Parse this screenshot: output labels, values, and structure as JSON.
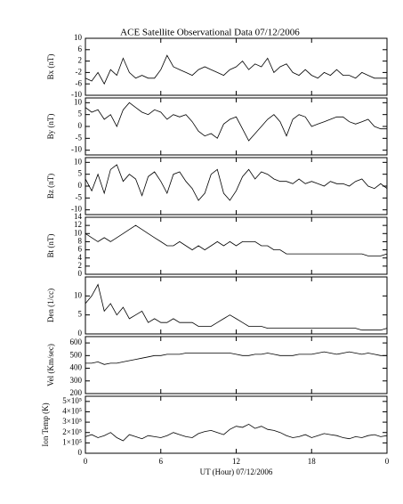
{
  "title": "ACE Satellite Observational Data   07/12/2006",
  "chart_data": [
    {
      "type": "line",
      "ylabel": "Bx (nT)",
      "ylim": [
        -10,
        10
      ],
      "yticks": [
        -10,
        -6,
        -2,
        2,
        6,
        10
      ],
      "x": [
        0,
        0.5,
        1,
        1.5,
        2,
        2.5,
        3,
        3.5,
        4,
        4.5,
        5,
        5.5,
        6,
        6.5,
        7,
        7.5,
        8,
        8.5,
        9,
        9.5,
        10,
        10.5,
        11,
        11.5,
        12,
        12.5,
        13,
        13.5,
        14,
        14.5,
        15,
        15.5,
        16,
        16.5,
        17,
        17.5,
        18,
        18.5,
        19,
        19.5,
        20,
        20.5,
        21,
        21.5,
        22,
        22.5,
        23,
        23.5,
        24
      ],
      "values": [
        -4,
        -5,
        -2,
        -6,
        -1,
        -3,
        3,
        -2,
        -4,
        -3,
        -4,
        -4,
        -1,
        4,
        0,
        -1,
        -2,
        -3,
        -1,
        0,
        -1,
        -2,
        -3,
        -1,
        0,
        2,
        -1,
        1,
        0,
        3,
        -2,
        0,
        1,
        -2,
        -3,
        -1,
        -3,
        -4,
        -2,
        -3,
        -1,
        -3,
        -3,
        -4,
        -2,
        -3,
        -4,
        -4,
        -4
      ],
      "color": "#000000"
    },
    {
      "type": "line",
      "ylabel": "By (nT)",
      "ylim": [
        -12,
        12
      ],
      "yticks": [
        -10,
        -5,
        0,
        5,
        10
      ],
      "x": [
        0,
        0.5,
        1,
        1.5,
        2,
        2.5,
        3,
        3.5,
        4,
        4.5,
        5,
        5.5,
        6,
        6.5,
        7,
        7.5,
        8,
        8.5,
        9,
        9.5,
        10,
        10.5,
        11,
        11.5,
        12,
        12.5,
        13,
        13.5,
        14,
        14.5,
        15,
        15.5,
        16,
        16.5,
        17,
        17.5,
        18,
        18.5,
        19,
        19.5,
        20,
        20.5,
        21,
        21.5,
        22,
        22.5,
        23,
        23.5,
        24
      ],
      "values": [
        8,
        6,
        7,
        3,
        5,
        0,
        7,
        10,
        8,
        6,
        5,
        7,
        6,
        3,
        5,
        4,
        5,
        2,
        -2,
        -4,
        -3,
        -5,
        1,
        3,
        4,
        -1,
        -6,
        -3,
        0,
        3,
        5,
        2,
        -4,
        3,
        5,
        4,
        0,
        1,
        2,
        3,
        4,
        4,
        2,
        1,
        2,
        3,
        0,
        -1,
        -1
      ],
      "color": "#000000"
    },
    {
      "type": "line",
      "ylabel": "Bz (nT)",
      "ylim": [
        -12,
        12
      ],
      "yticks": [
        -10,
        -5,
        0,
        5,
        10
      ],
      "x": [
        0,
        0.5,
        1,
        1.5,
        2,
        2.5,
        3,
        3.5,
        4,
        4.5,
        5,
        5.5,
        6,
        6.5,
        7,
        7.5,
        8,
        8.5,
        9,
        9.5,
        10,
        10.5,
        11,
        11.5,
        12,
        12.5,
        13,
        13.5,
        14,
        14.5,
        15,
        15.5,
        16,
        16.5,
        17,
        17.5,
        18,
        18.5,
        19,
        19.5,
        20,
        20.5,
        21,
        21.5,
        22,
        22.5,
        23,
        23.5,
        24
      ],
      "values": [
        3,
        -2,
        5,
        -3,
        7,
        9,
        2,
        5,
        3,
        -4,
        4,
        6,
        2,
        -3,
        5,
        6,
        2,
        -1,
        -6,
        -3,
        5,
        7,
        -3,
        -6,
        -2,
        4,
        7,
        3,
        6,
        5,
        3,
        2,
        2,
        1,
        3,
        1,
        2,
        1,
        0,
        2,
        1,
        1,
        0,
        2,
        3,
        0,
        -1,
        1,
        -1
      ],
      "color": "#000000"
    },
    {
      "type": "line",
      "ylabel": "Bt (nT)",
      "ylim": [
        0,
        14
      ],
      "yticks": [
        0,
        2,
        4,
        6,
        8,
        10,
        12,
        14
      ],
      "x": [
        0,
        0.5,
        1,
        1.5,
        2,
        2.5,
        3,
        3.5,
        4,
        4.5,
        5,
        5.5,
        6,
        6.5,
        7,
        7.5,
        8,
        8.5,
        9,
        9.5,
        10,
        10.5,
        11,
        11.5,
        12,
        12.5,
        13,
        13.5,
        14,
        14.5,
        15,
        15.5,
        16,
        16.5,
        17,
        17.5,
        18,
        18.5,
        19,
        19.5,
        20,
        20.5,
        21,
        21.5,
        22,
        22.5,
        23,
        23.5,
        24
      ],
      "values": [
        10,
        9,
        8,
        9,
        8,
        9,
        10,
        11,
        12,
        11,
        10,
        9,
        8,
        7,
        7,
        8,
        7,
        6,
        7,
        6,
        7,
        8,
        7,
        8,
        7,
        8,
        8,
        8,
        7,
        7,
        6,
        6,
        5,
        5,
        5,
        5,
        5,
        5,
        5,
        5,
        5,
        5,
        5,
        5,
        5,
        4.5,
        4.5,
        4.5,
        5
      ],
      "color": "#000000"
    },
    {
      "type": "line",
      "ylabel": "Den (1/cc)",
      "ylim": [
        0,
        15
      ],
      "yticks": [
        0,
        5,
        10
      ],
      "x": [
        0,
        0.5,
        1,
        1.5,
        2,
        2.5,
        3,
        3.5,
        4,
        4.5,
        5,
        5.5,
        6,
        6.5,
        7,
        7.5,
        8,
        8.5,
        9,
        9.5,
        10,
        10.5,
        11,
        11.5,
        12,
        12.5,
        13,
        13.5,
        14,
        14.5,
        15,
        15.5,
        16,
        16.5,
        17,
        17.5,
        18,
        18.5,
        19,
        19.5,
        20,
        20.5,
        21,
        21.5,
        22,
        22.5,
        23,
        23.5,
        24
      ],
      "values": [
        8,
        10,
        13,
        6,
        8,
        5,
        7,
        4,
        5,
        6,
        3,
        4,
        3,
        3,
        4,
        3,
        3,
        3,
        2,
        2,
        2,
        3,
        4,
        5,
        4,
        3,
        2,
        2,
        2,
        1.5,
        1.5,
        1.5,
        1.5,
        1.5,
        1.5,
        1.5,
        1.5,
        1.5,
        1.5,
        1.5,
        1.5,
        1.5,
        1.5,
        1.5,
        1,
        1,
        1,
        1,
        1.5
      ],
      "color": "#000000"
    },
    {
      "type": "line",
      "ylabel": "Vel (Km/sec)",
      "ylim": [
        200,
        650
      ],
      "yticks": [
        200,
        300,
        400,
        500,
        600
      ],
      "x": [
        0,
        0.5,
        1,
        1.5,
        2,
        2.5,
        3,
        3.5,
        4,
        4.5,
        5,
        5.5,
        6,
        6.5,
        7,
        7.5,
        8,
        8.5,
        9,
        9.5,
        10,
        10.5,
        11,
        11.5,
        12,
        12.5,
        13,
        13.5,
        14,
        14.5,
        15,
        15.5,
        16,
        16.5,
        17,
        17.5,
        18,
        18.5,
        19,
        19.5,
        20,
        20.5,
        21,
        21.5,
        22,
        22.5,
        23,
        23.5,
        24
      ],
      "values": [
        440,
        440,
        450,
        430,
        440,
        440,
        450,
        460,
        470,
        480,
        490,
        500,
        500,
        510,
        510,
        510,
        520,
        520,
        520,
        520,
        520,
        520,
        520,
        520,
        510,
        500,
        500,
        510,
        510,
        520,
        510,
        500,
        500,
        500,
        510,
        510,
        510,
        520,
        530,
        520,
        510,
        520,
        530,
        520,
        510,
        520,
        510,
        500,
        500
      ],
      "color": "#000000"
    },
    {
      "type": "line",
      "ylabel": "Ion Temp (K)",
      "ylim": [
        0,
        550000
      ],
      "yticks": [
        0,
        {
          "value": 100000,
          "label": "1×10⁵"
        },
        {
          "value": 200000,
          "label": "2×10⁵"
        },
        {
          "value": 300000,
          "label": "3×10⁵"
        },
        {
          "value": 400000,
          "label": "4×10⁵"
        },
        {
          "value": 500000,
          "label": "5×10⁵"
        }
      ],
      "xlabel": "UT (Hour)   07/12/2006",
      "xlim": [
        0,
        24
      ],
      "xticks": [
        0,
        6,
        12,
        18,
        {
          "value": 24,
          "label": "0"
        }
      ],
      "x": [
        0,
        0.5,
        1,
        1.5,
        2,
        2.5,
        3,
        3.5,
        4,
        4.5,
        5,
        5.5,
        6,
        6.5,
        7,
        7.5,
        8,
        8.5,
        9,
        9.5,
        10,
        10.5,
        11,
        11.5,
        12,
        12.5,
        13,
        13.5,
        14,
        14.5,
        15,
        15.5,
        16,
        16.5,
        17,
        17.5,
        18,
        18.5,
        19,
        19.5,
        20,
        20.5,
        21,
        21.5,
        22,
        22.5,
        23,
        23.5,
        24
      ],
      "values": [
        160000,
        180000,
        150000,
        170000,
        200000,
        150000,
        120000,
        180000,
        160000,
        140000,
        170000,
        160000,
        150000,
        170000,
        200000,
        180000,
        160000,
        150000,
        190000,
        210000,
        220000,
        200000,
        180000,
        230000,
        260000,
        250000,
        280000,
        240000,
        260000,
        230000,
        220000,
        200000,
        170000,
        150000,
        160000,
        180000,
        150000,
        170000,
        190000,
        180000,
        170000,
        150000,
        140000,
        160000,
        150000,
        170000,
        180000,
        160000,
        170000
      ],
      "color": "#000000"
    }
  ]
}
